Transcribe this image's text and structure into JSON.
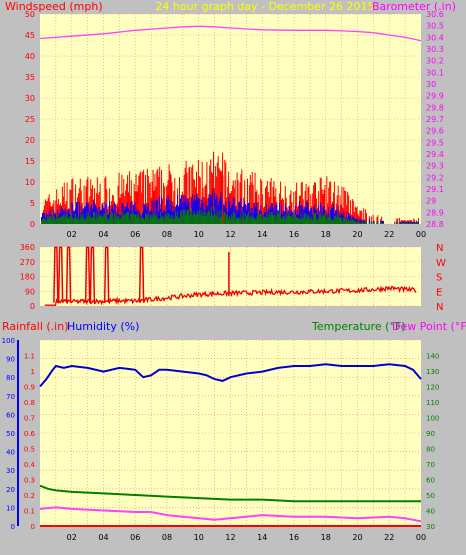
{
  "header": {
    "left_label": "Windspeed (mph)",
    "center_label": "24 hour graph day - December 26 2015",
    "right_label": "Barometer (.in)"
  },
  "colors": {
    "frame_bg": "#c0c0c0",
    "plot_bg": "#ffffc0",
    "grid": "#ff8080",
    "wind": "#ff0000",
    "wind_avg": "#0000ff",
    "wind_low": "#008000",
    "barometer": "#ff40ff",
    "direction": "#ee0000",
    "humidity": "#0000d0",
    "temperature": "#008000",
    "dewpoint": "#ff40ff",
    "rain": "#ff0000",
    "header_text": "#ff0000",
    "header_center": "#ffff00",
    "header_right": "#ff00ff",
    "axis_right": "#ff00ff",
    "axis_temp": "#008000",
    "axis_humidity": "#0000ff",
    "axis_rain": "#ff0000",
    "axis_left": "#ff0000"
  },
  "chart_data": [
    {
      "type": "line",
      "name": "wind-barometer",
      "x_ticks": [
        "02",
        "04",
        "06",
        "08",
        "10",
        "12",
        "14",
        "16",
        "18",
        "20",
        "22",
        "00"
      ],
      "left_axis": {
        "label": "Windspeed (mph)",
        "range": [
          0,
          50
        ],
        "ticks": [
          0,
          5,
          10,
          15,
          20,
          25,
          30,
          35,
          40,
          45,
          50
        ]
      },
      "right_axis": {
        "label": "Barometer (.in)",
        "range": [
          28.8,
          30.6
        ],
        "ticks": [
          "28.8",
          "28.9",
          "29",
          "29.1",
          "29.2",
          "29.3",
          "29.4",
          "29.5",
          "29.6",
          "29.7",
          "29.8",
          "29.9",
          "30",
          "30.1",
          "30.2",
          "30.3",
          "30.4",
          "30.5",
          "30.6"
        ]
      },
      "barometer": {
        "x": [
          0,
          2,
          4,
          6,
          8,
          9,
          10,
          11,
          12,
          14,
          16,
          18,
          19,
          20,
          21,
          22,
          23,
          24
        ],
        "y": [
          30.39,
          30.41,
          30.43,
          30.46,
          30.48,
          30.49,
          30.495,
          30.49,
          30.48,
          30.465,
          30.46,
          30.46,
          30.455,
          30.45,
          30.44,
          30.42,
          30.4,
          30.37
        ]
      },
      "windspeed_gust_profile": {
        "x": [
          0,
          2,
          4,
          6,
          8,
          10,
          11,
          12,
          14,
          16,
          18,
          19,
          20,
          22,
          24
        ],
        "y": [
          4,
          8,
          8,
          9,
          10,
          11,
          12,
          10,
          8,
          7,
          8,
          7,
          3,
          1,
          1
        ]
      },
      "windspeed_avg_profile": {
        "x": [
          0,
          2,
          4,
          6,
          8,
          10,
          11,
          12,
          14,
          16,
          18,
          19,
          20,
          22,
          24
        ],
        "y": [
          2,
          4,
          4,
          4,
          5,
          6,
          6,
          5,
          4,
          4,
          4,
          3,
          1,
          0.5,
          0.5
        ]
      },
      "windspeed_low_profile": {
        "x": [
          0,
          2,
          4,
          6,
          8,
          10,
          11,
          12,
          14,
          16,
          18,
          19,
          20,
          22,
          24
        ],
        "y": [
          1,
          2,
          2,
          2,
          2,
          3,
          3,
          2,
          2,
          2,
          2,
          1.5,
          0.5,
          0.2,
          0.2
        ]
      }
    },
    {
      "type": "line",
      "name": "wind-direction",
      "x_ticks": [
        "02",
        "04",
        "06",
        "08",
        "10",
        "12",
        "14",
        "16",
        "18",
        "20",
        "22",
        "00"
      ],
      "left_axis": {
        "range": [
          0,
          360
        ],
        "ticks": [
          0,
          90,
          180,
          270,
          360
        ]
      },
      "compass_labels": [
        "N",
        "W",
        "S",
        "E",
        "N"
      ],
      "direction": {
        "x": [
          0,
          1,
          1.4,
          2,
          3,
          4,
          5,
          6,
          7,
          8,
          9,
          10,
          11,
          12,
          13,
          14,
          15,
          16,
          17,
          18,
          19,
          20,
          21,
          22,
          23,
          24
        ],
        "y": [
          20,
          25,
          30,
          25,
          30,
          28,
          32,
          30,
          40,
          50,
          60,
          70,
          75,
          78,
          80,
          82,
          85,
          85,
          88,
          90,
          92,
          95,
          100,
          110,
          100,
          95
        ]
      },
      "direction_spikes_x": [
        1.0,
        1.3,
        1.8,
        3.0,
        3.3,
        4.2,
        6.4
      ]
    },
    {
      "type": "line",
      "name": "humidity-temperature",
      "x_ticks": [
        "02",
        "04",
        "06",
        "08",
        "10",
        "12",
        "14",
        "16",
        "18",
        "20",
        "22",
        "00"
      ],
      "legend": [
        "Rainfall (.in)",
        "Humidity (%)",
        "Temperature (°F)",
        "Dew Point (°F)"
      ],
      "rain_axis": {
        "label": "Rainfall (.in)",
        "range": [
          0,
          1.2
        ],
        "ticks": [
          "0",
          "0.1",
          "0.2",
          "0.3",
          "0.4",
          "0.5",
          "0.6",
          "0.7",
          "0.8",
          "0.9",
          "1",
          "1.1"
        ]
      },
      "humidity_axis": {
        "label": "Humidity (%)",
        "range": [
          0,
          100
        ],
        "ticks": [
          0,
          10,
          20,
          30,
          40,
          50,
          60,
          70,
          80,
          90,
          100
        ]
      },
      "temp_axis": {
        "label": "Temperature (°F)",
        "range": [
          30,
          150
        ],
        "ticks": [
          30,
          40,
          50,
          60,
          70,
          80,
          90,
          100,
          110,
          120,
          130,
          140
        ]
      },
      "humidity": {
        "x": [
          0,
          0.4,
          0.8,
          1,
          1.5,
          2,
          3,
          4,
          5,
          6,
          6.5,
          7,
          7.5,
          8,
          9,
          10,
          10.5,
          11,
          11.5,
          12,
          13,
          14,
          15,
          16,
          17,
          18,
          19,
          20,
          21,
          22,
          23,
          23.5,
          24
        ],
        "y": [
          75,
          79,
          84,
          86,
          85,
          86,
          85,
          83,
          85,
          84,
          80,
          81,
          84,
          84,
          83,
          82,
          81,
          79,
          78,
          80,
          82,
          83,
          85,
          86,
          86,
          87,
          86,
          86,
          86,
          87,
          86,
          84,
          79
        ]
      },
      "temperature": {
        "x": [
          0,
          0.5,
          1,
          2,
          4,
          6,
          8,
          10,
          12,
          14,
          16,
          18,
          20,
          22,
          24
        ],
        "y": [
          56,
          54,
          53,
          52,
          51,
          50,
          49,
          48,
          47,
          47,
          46,
          46,
          46,
          46,
          46
        ]
      },
      "dewpoint": {
        "x": [
          0,
          1,
          2,
          4,
          6,
          7,
          8,
          9,
          10,
          11,
          12,
          13,
          14,
          16,
          18,
          20,
          22,
          23,
          24
        ],
        "y": [
          41,
          42,
          41,
          40,
          39,
          39,
          37,
          36,
          35,
          34,
          35,
          36,
          37,
          36,
          36,
          35,
          36,
          35,
          33
        ]
      },
      "rainfall": {
        "x": [
          0,
          24
        ],
        "y": [
          0,
          0
        ]
      }
    }
  ]
}
